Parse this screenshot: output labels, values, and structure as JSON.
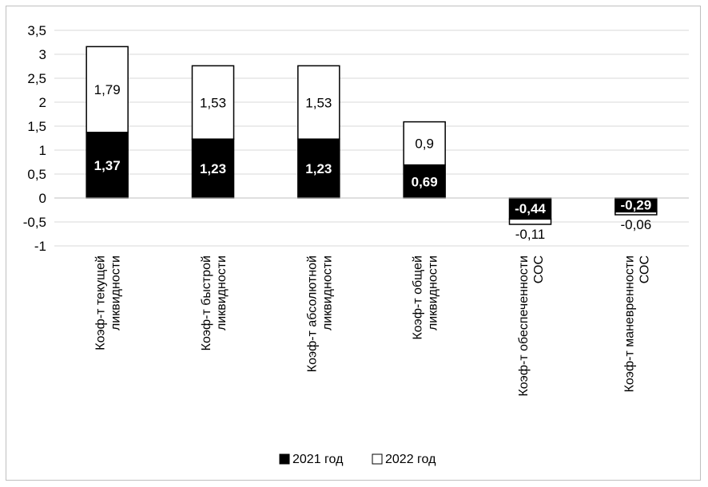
{
  "chart_data": {
    "type": "bar",
    "stacked": true,
    "categories": [
      [
        "Коэф-т текущей",
        "ликвидности"
      ],
      [
        "Коэф-т быстрой",
        "ликвидности"
      ],
      [
        "Коэф-т абсолютной",
        "ликвидности"
      ],
      [
        "Коэф-т общей",
        "ликвидности"
      ],
      [
        "Коэф-т обеспеченности",
        "СОС"
      ],
      [
        "Коэф-т маневренности",
        "СОС"
      ]
    ],
    "series": [
      {
        "name": "2021 год",
        "color": "#000000",
        "values": [
          1.37,
          1.23,
          1.23,
          0.69,
          -0.44,
          -0.29
        ],
        "labels": [
          "1,37",
          "1,23",
          "1,23",
          "0,69",
          "-0,44",
          "-0,29"
        ]
      },
      {
        "name": "2022 год",
        "color": "#ffffff",
        "values": [
          1.79,
          1.53,
          1.53,
          0.9,
          -0.11,
          -0.06
        ],
        "labels": [
          "1,79",
          "1,53",
          "1,53",
          "0,9",
          "-0,11",
          "-0,06"
        ]
      }
    ],
    "ylim": [
      -1,
      3.5
    ],
    "yticks": [
      3.5,
      3,
      2.5,
      2,
      1.5,
      1,
      0.5,
      0,
      -0.5,
      -1
    ],
    "ytick_labels": [
      "3,5",
      "3",
      "2,5",
      "2",
      "1,5",
      "1",
      "0,5",
      "0",
      "-0,5",
      "-1"
    ],
    "grid": true,
    "legend_position": "bottom"
  }
}
